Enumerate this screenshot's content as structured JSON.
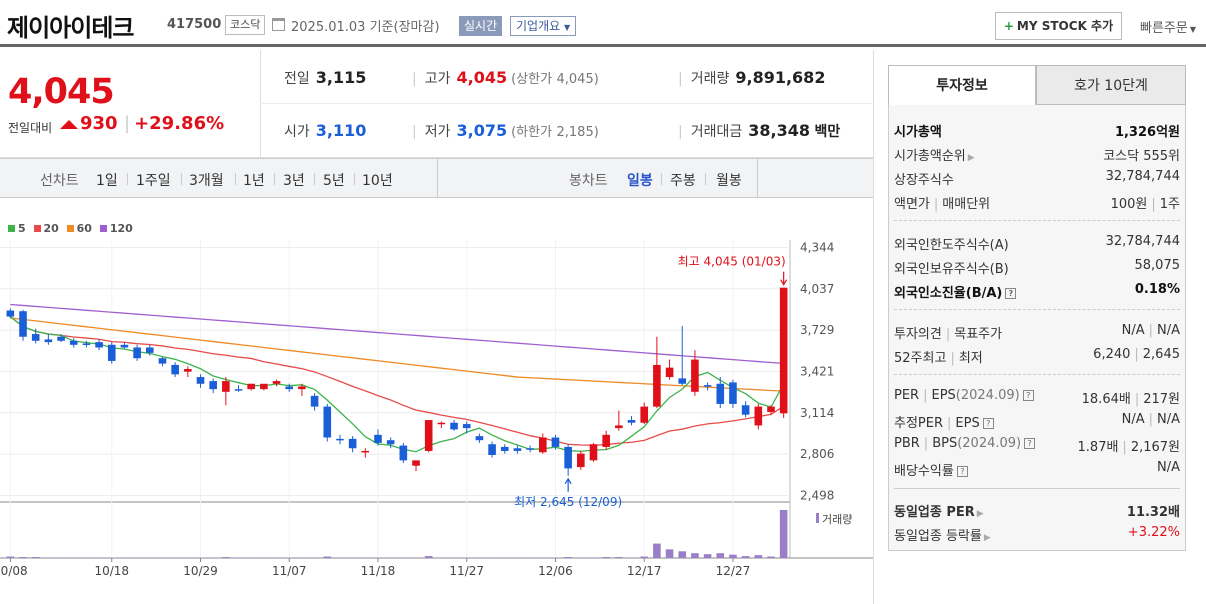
{
  "header": {
    "company_name": "제이아이테크",
    "stock_code": "417500",
    "market": "코스닥",
    "base_date": "2025.01.03",
    "base_note": "기준(장마감)",
    "realtime_label": "실시간",
    "overview_label": "기업개요",
    "mystock_label": "MY STOCK 추가",
    "quick_order_label": "빠른주문"
  },
  "price": {
    "current": "4,045",
    "change_label": "전일대비",
    "change_value": "930",
    "change_pct": "+29.86%",
    "prev_close_label": "전일",
    "prev_close": "3,115",
    "open_label": "시가",
    "open": "3,110",
    "high_label": "고가",
    "high": "4,045",
    "upper_limit_label": "(상한가",
    "upper_limit": "4,045)",
    "low_label": "저가",
    "low": "3,075",
    "lower_limit_label": "(하한가",
    "lower_limit": "2,185)",
    "volume_label": "거래량",
    "volume": "9,891,682",
    "amount_label": "거래대금",
    "amount": "38,348",
    "amount_unit": "백만"
  },
  "period_bar": {
    "line_label": "선차트",
    "line_periods": [
      "1일",
      "1주일",
      "3개월",
      "1년",
      "3년",
      "5년",
      "10년"
    ],
    "candle_label": "봉차트",
    "candle_periods": [
      "일봉",
      "주봉",
      "월봉"
    ],
    "selected_candle": "일봉"
  },
  "colors": {
    "up": "#e0101a",
    "down": "#1a5fd8",
    "ma5": "#3cb44a",
    "ma20": "#e84a4a",
    "ma60": "#f08a24",
    "ma120": "#a05fd0",
    "volume": "#9a7fc8"
  },
  "chart_data": {
    "type": "candlestick",
    "ma_legend": [
      "5",
      "20",
      "60",
      "120"
    ],
    "y_ticks": [
      4344,
      4037,
      3729,
      3421,
      3114,
      2806,
      2498
    ],
    "y_tick_labels": [
      "4,344",
      "4,037",
      "3,729",
      "3,421",
      "3,114",
      "2,806",
      "2,498"
    ],
    "ylim": [
      2450,
      4400
    ],
    "x_labels": [
      "10/08",
      "10/18",
      "10/29",
      "11/07",
      "11/18",
      "11/27",
      "12/06",
      "12/17",
      "12/27"
    ],
    "x_label_index": [
      0,
      8,
      15,
      22,
      29,
      36,
      43,
      50,
      57
    ],
    "max_annotation": "최고 4,045 (01/03)",
    "min_annotation": "최저 2,645 (12/09)",
    "max_index": 61,
    "max_value": 4045,
    "min_index": 44,
    "min_value": 2645,
    "volume_label": "거래량",
    "candles": [
      [
        3875,
        3890,
        3830,
        3820
      ],
      [
        3870,
        3880,
        3680,
        3650
      ],
      [
        3700,
        3740,
        3650,
        3630
      ],
      [
        3660,
        3700,
        3640,
        3620
      ],
      [
        3680,
        3700,
        3650,
        3640
      ],
      [
        3650,
        3670,
        3620,
        3600
      ],
      [
        3630,
        3650,
        3620,
        3600
      ],
      [
        3640,
        3660,
        3600,
        3580
      ],
      [
        3620,
        3640,
        3500,
        3480
      ],
      [
        3620,
        3640,
        3600,
        3590
      ],
      [
        3600,
        3620,
        3520,
        3500
      ],
      [
        3600,
        3620,
        3560,
        3540
      ],
      [
        3520,
        3530,
        3480,
        3460
      ],
      [
        3470,
        3490,
        3400,
        3380
      ],
      [
        3420,
        3460,
        3440,
        3380
      ],
      [
        3380,
        3400,
        3330,
        3300
      ],
      [
        3350,
        3370,
        3290,
        3260
      ],
      [
        3270,
        3380,
        3350,
        3170
      ],
      [
        3290,
        3320,
        3280,
        3270
      ],
      [
        3290,
        3330,
        3330,
        3280
      ],
      [
        3290,
        3310,
        3330,
        3280
      ],
      [
        3330,
        3360,
        3350,
        3310
      ],
      [
        3310,
        3330,
        3290,
        3270
      ],
      [
        3290,
        3330,
        3310,
        3240
      ],
      [
        3240,
        3260,
        3160,
        3130
      ],
      [
        3160,
        3180,
        2930,
        2900
      ],
      [
        2920,
        2950,
        2910,
        2880
      ],
      [
        2920,
        2940,
        2850,
        2820
      ],
      [
        2830,
        2850,
        2830,
        2780
      ],
      [
        2950,
        2990,
        2890,
        2870
      ],
      [
        2910,
        2930,
        2880,
        2850
      ],
      [
        2870,
        2890,
        2760,
        2740
      ],
      [
        2720,
        2750,
        2760,
        2680
      ],
      [
        2830,
        3060,
        3060,
        2820
      ],
      [
        3030,
        3050,
        3040,
        3000
      ],
      [
        3040,
        3060,
        2990,
        2980
      ],
      [
        3030,
        3050,
        3000,
        2960
      ],
      [
        2940,
        2960,
        2910,
        2890
      ],
      [
        2880,
        2900,
        2800,
        2780
      ],
      [
        2860,
        2880,
        2830,
        2810
      ],
      [
        2850,
        2870,
        2830,
        2810
      ],
      [
        2850,
        2870,
        2840,
        2820
      ],
      [
        2820,
        2960,
        2930,
        2810
      ],
      [
        2930,
        2950,
        2860,
        2840
      ],
      [
        2860,
        2880,
        2700,
        2645
      ],
      [
        2710,
        2830,
        2810,
        2690
      ],
      [
        2760,
        2890,
        2880,
        2750
      ],
      [
        2860,
        2980,
        2950,
        2840
      ],
      [
        3000,
        3130,
        3020,
        2980
      ],
      [
        3060,
        3090,
        3040,
        3020
      ],
      [
        3040,
        3190,
        3160,
        3030
      ],
      [
        3160,
        3680,
        3470,
        3150
      ],
      [
        3380,
        3510,
        3450,
        3360
      ],
      [
        3370,
        3760,
        3330,
        3320
      ],
      [
        3270,
        3580,
        3510,
        3240
      ],
      [
        3320,
        3340,
        3310,
        3280
      ],
      [
        3330,
        3380,
        3180,
        3150
      ],
      [
        3340,
        3360,
        3180,
        3150
      ],
      [
        3170,
        3200,
        3100,
        3080
      ],
      [
        3020,
        3180,
        3160,
        2990
      ],
      [
        3120,
        3170,
        3160,
        3100
      ],
      [
        3110,
        4045,
        4045,
        3075
      ]
    ],
    "volumes": [
      0.03,
      0.02,
      0.02,
      0.01,
      0.01,
      0.01,
      0.01,
      0.01,
      0.01,
      0.01,
      0.01,
      0.01,
      0.01,
      0.01,
      0.01,
      0.01,
      0.01,
      0.02,
      0.01,
      0.01,
      0.01,
      0.01,
      0.01,
      0.01,
      0.01,
      0.03,
      0.01,
      0.01,
      0.01,
      0.01,
      0.01,
      0.01,
      0.01,
      0.04,
      0.01,
      0.01,
      0.01,
      0.01,
      0.01,
      0.01,
      0.01,
      0.01,
      0.01,
      0.01,
      0.02,
      0.01,
      0.01,
      0.02,
      0.02,
      0.01,
      0.03,
      0.3,
      0.18,
      0.14,
      0.1,
      0.08,
      0.1,
      0.07,
      0.04,
      0.06,
      0.03,
      1.0
    ]
  },
  "tabs": {
    "invest_info": "투자정보",
    "order_book": "호가 10단계"
  },
  "info": {
    "market_cap_label": "시가총액",
    "market_cap": "1,326억원",
    "market_cap_rank_label": "시가총액순위",
    "market_cap_rank": "코스닥 555위",
    "listed_shares_label": "상장주식수",
    "listed_shares": "32,784,744",
    "par_label": "액면가",
    "trade_unit_label": "매매단위",
    "par_value": "100원",
    "trade_unit": "1주",
    "foreign_limit_label": "외국인한도주식수(A)",
    "foreign_limit": "32,784,744",
    "foreign_hold_label": "외국인보유주식수(B)",
    "foreign_hold": "58,075",
    "foreign_ratio_label": "외국인소진율(B/A)",
    "foreign_ratio": "0.18%",
    "opinion_label": "투자의견",
    "target_label": "목표주가",
    "opinion": "N/A",
    "target": "N/A",
    "w52_high_label": "52주최고",
    "w52_low_label": "최저",
    "w52_high": "6,240",
    "w52_low": "2,645",
    "per_label": "PER",
    "eps_label": "EPS",
    "eps_year": "(2024.09)",
    "per": "18.64배",
    "eps": "217원",
    "est_per_label": "추정PER",
    "est_eps_label": "EPS",
    "est_per": "N/A",
    "est_eps": "N/A",
    "pbr_label": "PBR",
    "bps_label": "BPS",
    "bps_year": "(2024.09)",
    "pbr": "1.87배",
    "bps": "2,167원",
    "dividend_label": "배당수익률",
    "dividend": "N/A",
    "sector_per_label": "동일업종 PER",
    "sector_per": "11.32배",
    "sector_change_label": "동일업종 등락률",
    "sector_change": "+3.22%"
  }
}
